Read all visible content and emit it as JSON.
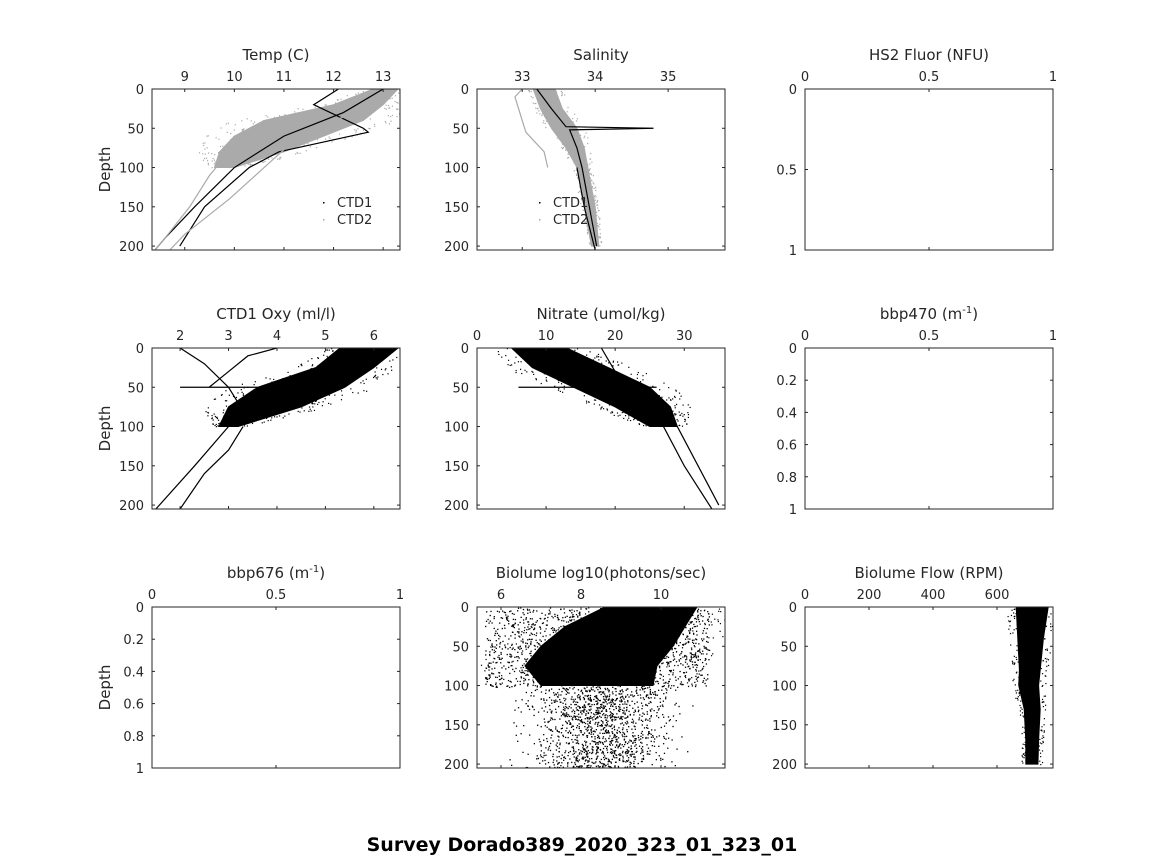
{
  "suptitle": "Survey Dorado389_2020_323_01_323_01",
  "colors": {
    "ctd1": "#000000",
    "ctd2": "#aaaaaa",
    "axis": "#262626"
  },
  "chart_data": [
    {
      "type": "scatter",
      "title": "Temp (C)",
      "ylabel": "Depth",
      "xlim": [
        8.34,
        13.34
      ],
      "ylim": [
        0,
        205
      ],
      "xticks": [
        9,
        10,
        11,
        12,
        13
      ],
      "yticks": [
        0,
        50,
        100,
        150,
        200
      ],
      "legend": {
        "entries": [
          "CTD1",
          "CTD2"
        ],
        "placement": "bottom-right"
      },
      "bands": [
        {
          "series": "CTD2",
          "color": "#aaaaaa",
          "depth": [
            0,
            20,
            40,
            60,
            80,
            100
          ],
          "low": [
            12.8,
            12.0,
            10.6,
            10.0,
            9.7,
            9.6
          ],
          "high": [
            13.3,
            13.0,
            12.6,
            11.8,
            11.0,
            10.0
          ]
        }
      ],
      "series": [
        {
          "name": "CTD1",
          "color": "#000000",
          "depth": [
            0,
            20,
            50,
            55,
            80,
            100,
            150,
            200
          ],
          "values": [
            12.1,
            11.6,
            12.6,
            12.7,
            10.9,
            10.3,
            9.4,
            8.9
          ]
        },
        {
          "name": "CTD1",
          "color": "#000000",
          "depth": [
            0,
            30,
            60,
            100,
            150,
            190,
            205
          ],
          "values": [
            13.0,
            12.2,
            11.0,
            10.0,
            9.2,
            8.6,
            8.4
          ]
        },
        {
          "name": "CTD2",
          "color": "#aaaaaa",
          "depth": [
            0,
            30,
            60,
            100,
            140,
            185,
            205
          ],
          "values": [
            13.1,
            12.4,
            11.3,
            10.6,
            9.9,
            9.0,
            8.7
          ]
        },
        {
          "name": "CTD2",
          "color": "#aaaaaa",
          "depth": [
            50,
            80,
            110,
            150,
            190,
            205
          ],
          "values": [
            10.2,
            9.9,
            9.5,
            9.1,
            8.6,
            8.4
          ]
        }
      ]
    },
    {
      "type": "scatter",
      "title": "Salinity",
      "ylabel": "",
      "xlim": [
        32.38,
        35.78
      ],
      "ylim": [
        0,
        205
      ],
      "xticks": [
        33,
        34,
        35
      ],
      "yticks": [
        0,
        50,
        100,
        150,
        200
      ],
      "legend": {
        "entries": [
          "CTD1",
          "CTD2"
        ],
        "placement": "bottom-center"
      },
      "bands": [
        {
          "series": "CTD2",
          "color": "#aaaaaa",
          "depth": [
            0,
            25,
            50,
            75,
            100,
            150,
            200
          ],
          "low": [
            33.15,
            33.25,
            33.4,
            33.6,
            33.75,
            33.85,
            33.95
          ],
          "high": [
            33.45,
            33.55,
            33.75,
            33.85,
            33.9,
            34.0,
            34.05
          ]
        }
      ],
      "series": [
        {
          "name": "CTD1",
          "color": "#000000",
          "depth": [
            0,
            25,
            48,
            50,
            52,
            75,
            100,
            150,
            200
          ],
          "values": [
            33.2,
            33.4,
            33.6,
            34.8,
            33.65,
            33.75,
            33.82,
            33.92,
            34.02
          ]
        },
        {
          "name": "CTD1",
          "color": "#000000",
          "depth": [
            100,
            150,
            205
          ],
          "values": [
            33.75,
            33.85,
            34.0
          ]
        },
        {
          "name": "CTD2",
          "color": "#aaaaaa",
          "depth": [
            0,
            10,
            40,
            55,
            80,
            100
          ],
          "values": [
            33.0,
            32.9,
            33.0,
            33.05,
            33.3,
            33.35
          ]
        }
      ]
    },
    {
      "type": "scatter",
      "title": "HS2 Fluor (NFU)",
      "ylabel": "",
      "xlim": [
        0,
        1
      ],
      "ylim": [
        0,
        1
      ],
      "xticks": [
        0,
        0.5,
        1
      ],
      "yticks": [
        0,
        0.5,
        1
      ],
      "bands": [],
      "series": []
    },
    {
      "type": "scatter",
      "title": "CTD1 Oxy (ml/l)",
      "ylabel": "Depth",
      "xlim": [
        1.42,
        6.54
      ],
      "ylim": [
        0,
        205
      ],
      "xticks": [
        2,
        3,
        4,
        5,
        6
      ],
      "yticks": [
        0,
        50,
        100,
        150,
        200
      ],
      "bands": [
        {
          "series": "CTD1",
          "color": "#000000",
          "depth": [
            0,
            25,
            50,
            75,
            100
          ],
          "low": [
            5.3,
            4.8,
            3.6,
            3.0,
            2.8
          ],
          "high": [
            6.5,
            6.0,
            5.4,
            4.5,
            3.2
          ]
        }
      ],
      "series": [
        {
          "name": "CTD1",
          "color": "#000000",
          "depth": [
            50,
            50
          ],
          "values": [
            2.0,
            3.6
          ]
        },
        {
          "name": "CTD1",
          "color": "#000000",
          "depth": [
            0,
            20,
            50,
            80,
            100,
            150,
            205
          ],
          "values": [
            2.0,
            2.5,
            3.0,
            3.3,
            3.0,
            2.3,
            1.5
          ]
        },
        {
          "name": "CTD1",
          "color": "#000000",
          "depth": [
            100,
            130,
            160,
            205
          ],
          "values": [
            3.3,
            3.0,
            2.5,
            2.0
          ]
        },
        {
          "name": "CTD1",
          "color": "#000000",
          "depth": [
            0,
            10,
            30,
            50
          ],
          "values": [
            4.0,
            3.4,
            3.0,
            2.6
          ]
        }
      ]
    },
    {
      "type": "scatter",
      "title": "Nitrate (umol/kg)",
      "ylabel": "",
      "xlim": [
        0,
        35.9
      ],
      "ylim": [
        0,
        205
      ],
      "xticks": [
        0,
        10,
        20,
        30
      ],
      "yticks": [
        0,
        50,
        100,
        150,
        200
      ],
      "bands": [
        {
          "series": "CTD1",
          "color": "#000000",
          "depth": [
            0,
            25,
            50,
            75,
            100
          ],
          "low": [
            5,
            8,
            14,
            20,
            25
          ],
          "high": [
            13,
            19,
            25,
            28,
            29
          ]
        }
      ],
      "series": [
        {
          "name": "CTD1",
          "color": "#000000",
          "depth": [
            50,
            50
          ],
          "values": [
            6,
            26
          ]
        },
        {
          "name": "CTD1",
          "color": "#000000",
          "depth": [
            100,
            150,
            205
          ],
          "values": [
            27,
            30,
            34
          ]
        },
        {
          "name": "CTD1",
          "color": "#000000",
          "depth": [
            100,
            150,
            200
          ],
          "values": [
            29,
            32,
            35
          ]
        },
        {
          "name": "CTD1",
          "color": "#000000",
          "depth": [
            0,
            30,
            60,
            100
          ],
          "values": [
            18,
            20,
            25,
            29
          ]
        }
      ]
    },
    {
      "type": "scatter",
      "title": "bbp470 (m",
      "title_sup": "-1",
      "title_end": ")",
      "ylabel": "",
      "xlim": [
        0,
        1
      ],
      "ylim": [
        0,
        1
      ],
      "xticks": [
        0,
        0.5,
        1
      ],
      "yticks": [
        0,
        0.2,
        0.4,
        0.6,
        0.8,
        1
      ],
      "bands": [],
      "series": []
    },
    {
      "type": "scatter",
      "title": "bbp676 (m",
      "title_sup": "-1",
      "title_end": ")",
      "ylabel": "Depth",
      "xlim": [
        0,
        1
      ],
      "ylim": [
        0,
        1
      ],
      "xticks": [
        0,
        0.5,
        1
      ],
      "yticks": [
        0,
        0.2,
        0.4,
        0.6,
        0.8,
        1
      ],
      "bands": [],
      "series": []
    },
    {
      "type": "scatter",
      "title": "Biolume log10(photons/sec)",
      "ylabel": "",
      "xlim": [
        5.4,
        11.6
      ],
      "ylim": [
        0,
        205
      ],
      "xticks": [
        6,
        8,
        10
      ],
      "yticks": [
        0,
        50,
        100,
        150,
        200
      ],
      "bands": [
        {
          "series": "CTD1",
          "color": "#000000",
          "depth": [
            0,
            25,
            50,
            75,
            100
          ],
          "low": [
            8.6,
            7.6,
            7.0,
            6.6,
            7.0
          ],
          "high": [
            10.9,
            10.6,
            10.3,
            9.9,
            9.8
          ]
        }
      ],
      "scatter": {
        "depth_range": [
          0,
          205
        ],
        "value_range": [
          5.6,
          11.2
        ],
        "count": 2600
      },
      "series": []
    },
    {
      "type": "scatter",
      "title": "Biolume Flow (RPM)",
      "ylabel": "",
      "xlim": [
        0,
        775
      ],
      "ylim": [
        0,
        205
      ],
      "xticks": [
        0,
        200,
        400,
        600
      ],
      "yticks": [
        0,
        50,
        100,
        150,
        200
      ],
      "bands": [
        {
          "series": "CTD1",
          "color": "#000000",
          "depth": [
            0,
            40,
            80,
            100,
            130,
            170,
            200
          ],
          "low": [
            660,
            665,
            670,
            668,
            685,
            690,
            690
          ],
          "high": [
            760,
            745,
            735,
            730,
            735,
            730,
            728
          ]
        }
      ],
      "series": []
    }
  ]
}
